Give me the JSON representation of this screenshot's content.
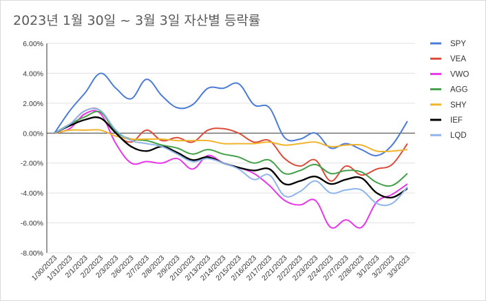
{
  "chart_data": {
    "type": "line",
    "title": "2023년 1월 30일 ~ 3월 3일 자산별 등락률",
    "xlabel": "",
    "ylabel": "",
    "ylim": [
      -0.08,
      0.06
    ],
    "yticks": [
      0.06,
      0.04,
      0.02,
      0.0,
      -0.02,
      -0.04,
      -0.06,
      -0.08
    ],
    "ytick_labels": [
      "6.00%",
      "4.00%",
      "2.00%",
      "0.00%",
      "-2.00%",
      "-4.00%",
      "-6.00%",
      "-8.00%"
    ],
    "categories": [
      "1/30/2023",
      "1/31/2023",
      "2/1/2023",
      "2/2/2023",
      "2/3/2023",
      "2/6/2023",
      "2/7/2023",
      "2/8/2023",
      "2/9/2023",
      "2/10/2023",
      "2/13/2023",
      "2/14/2023",
      "2/15/2023",
      "2/16/2023",
      "2/17/2023",
      "2/21/2023",
      "2/22/2023",
      "2/23/2023",
      "2/24/2023",
      "2/27/2023",
      "2/28/2023",
      "3/1/2023",
      "3/2/2023",
      "3/3/2023"
    ],
    "legend_position": "right",
    "series": [
      {
        "name": "SPY",
        "color": "#4a7bd8",
        "values": [
          0.0,
          0.015,
          0.027,
          0.04,
          0.03,
          0.023,
          0.036,
          0.025,
          0.017,
          0.019,
          0.03,
          0.03,
          0.033,
          0.019,
          0.017,
          -0.003,
          -0.004,
          0.0,
          -0.01,
          -0.007,
          -0.011,
          -0.015,
          -0.008,
          0.008
        ]
      },
      {
        "name": "VEA",
        "color": "#dc4a38",
        "values": [
          0.0,
          0.006,
          0.015,
          0.015,
          0.0,
          -0.006,
          0.002,
          -0.005,
          -0.003,
          -0.006,
          0.002,
          0.003,
          0.0,
          -0.006,
          -0.005,
          -0.017,
          -0.022,
          -0.018,
          -0.032,
          -0.022,
          -0.028,
          -0.024,
          -0.021,
          -0.007
        ]
      },
      {
        "name": "VWO",
        "color": "#e935e9",
        "values": [
          0.0,
          0.003,
          0.013,
          0.013,
          -0.007,
          -0.02,
          -0.019,
          -0.02,
          -0.017,
          -0.024,
          -0.015,
          -0.02,
          -0.023,
          -0.027,
          -0.035,
          -0.045,
          -0.048,
          -0.045,
          -0.063,
          -0.058,
          -0.063,
          -0.046,
          -0.041,
          -0.034
        ]
      },
      {
        "name": "AGG",
        "color": "#43a047",
        "values": [
          0.0,
          0.006,
          0.011,
          0.014,
          0.001,
          -0.004,
          -0.005,
          -0.008,
          -0.01,
          -0.014,
          -0.011,
          -0.014,
          -0.016,
          -0.02,
          -0.018,
          -0.027,
          -0.025,
          -0.021,
          -0.027,
          -0.025,
          -0.026,
          -0.033,
          -0.035,
          -0.027
        ]
      },
      {
        "name": "SHY",
        "color": "#f0b32a",
        "values": [
          0.0,
          0.002,
          0.002,
          0.002,
          -0.002,
          -0.004,
          -0.004,
          -0.004,
          -0.005,
          -0.005,
          -0.005,
          -0.007,
          -0.007,
          -0.007,
          -0.006,
          -0.008,
          -0.007,
          -0.006,
          -0.009,
          -0.008,
          -0.008,
          -0.012,
          -0.012,
          -0.011
        ]
      },
      {
        "name": "IEF",
        "color": "#000000",
        "values": [
          0.0,
          0.005,
          0.009,
          0.01,
          0.0,
          -0.009,
          -0.012,
          -0.009,
          -0.013,
          -0.018,
          -0.016,
          -0.02,
          -0.023,
          -0.025,
          -0.024,
          -0.034,
          -0.032,
          -0.029,
          -0.034,
          -0.031,
          -0.03,
          -0.04,
          -0.043,
          -0.037
        ]
      },
      {
        "name": "LQD",
        "color": "#8fb4eb",
        "values": [
          0.0,
          0.006,
          0.015,
          0.015,
          0.002,
          -0.005,
          -0.007,
          -0.009,
          -0.014,
          -0.019,
          -0.017,
          -0.02,
          -0.024,
          -0.031,
          -0.028,
          -0.042,
          -0.039,
          -0.032,
          -0.04,
          -0.038,
          -0.038,
          -0.047,
          -0.047,
          -0.036
        ]
      }
    ]
  }
}
